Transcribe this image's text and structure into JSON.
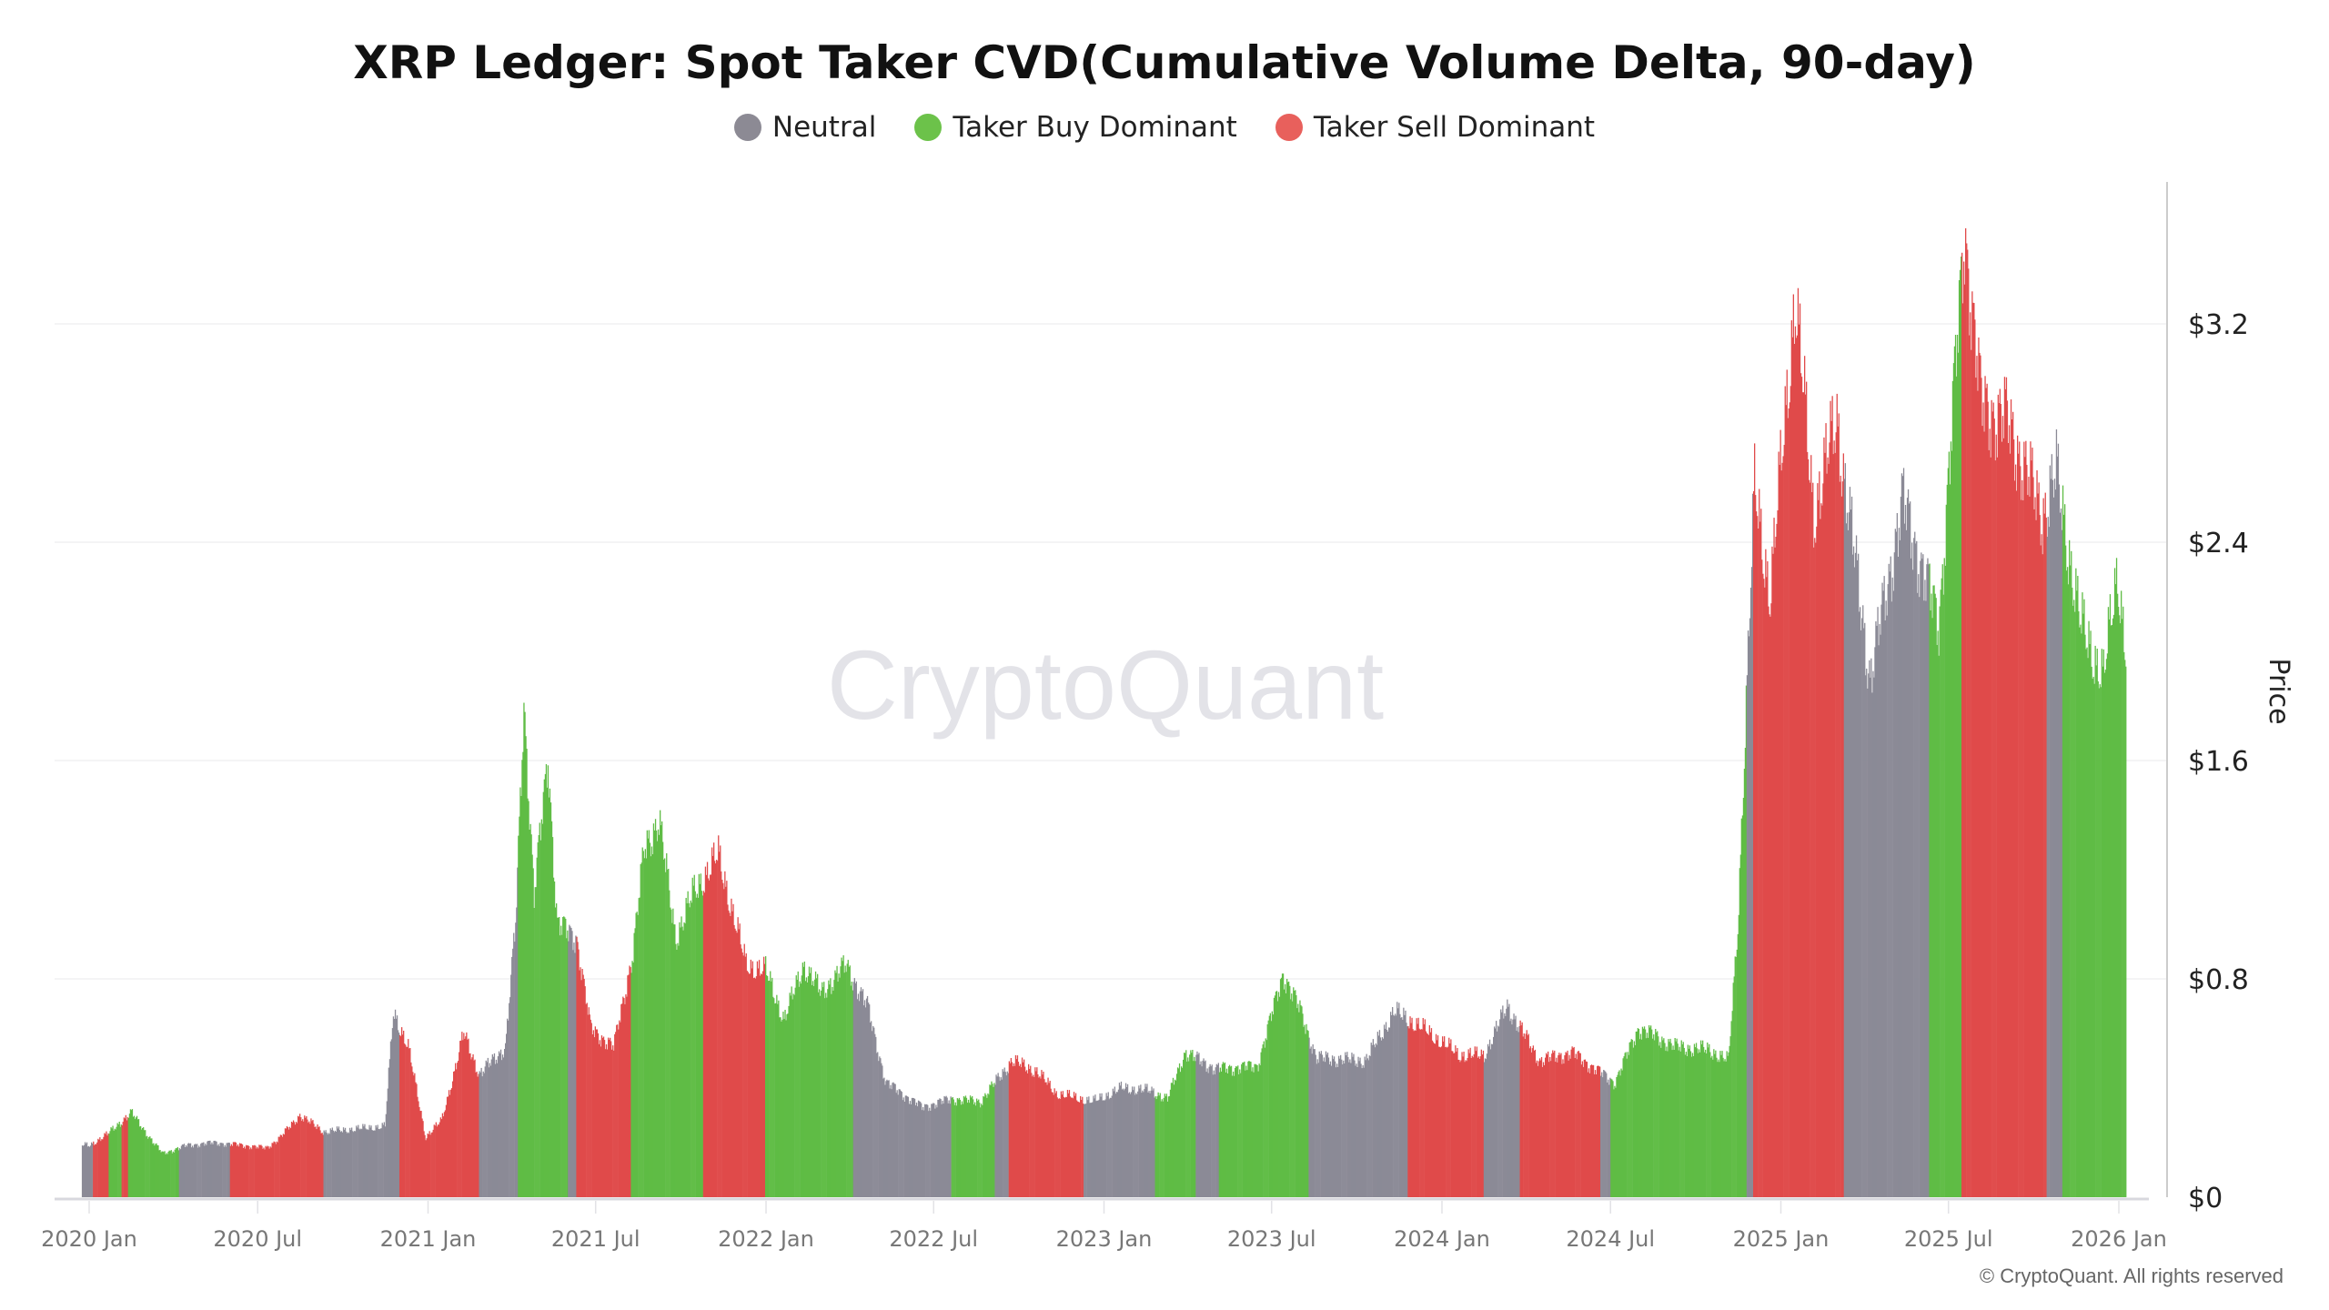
{
  "colors": {
    "neutral": "#8b8a96",
    "buy": "#5fbc45",
    "sell": "#e04a4a"
  },
  "chart_data": {
    "type": "bar",
    "title": "XRP Ledger: Spot Taker CVD(Cumulative Volume Delta, 90-day)",
    "legend": [
      {
        "key": "neutral",
        "label": "Neutral",
        "color": "#8c8a94"
      },
      {
        "key": "buy",
        "label": "Taker Buy Dominant",
        "color": "#6cc24a"
      },
      {
        "key": "sell",
        "label": "Taker Sell Dominant",
        "color": "#e8605c"
      }
    ],
    "legend_position": "top",
    "ylabel": "Price",
    "ylim": [
      0,
      3.65
    ],
    "y_ticks": [
      {
        "v": 0,
        "label": "$0"
      },
      {
        "v": 0.8,
        "label": "$0.8"
      },
      {
        "v": 1.6,
        "label": "$1.6"
      },
      {
        "v": 2.4,
        "label": "$2.4"
      },
      {
        "v": 3.2,
        "label": "$3.2"
      }
    ],
    "y_axis_side": "right",
    "x_ticks": [
      {
        "date": "2020-01-01",
        "label": "2020 Jan"
      },
      {
        "date": "2020-07-01",
        "label": "2020 Jul"
      },
      {
        "date": "2021-01-01",
        "label": "2021 Jan"
      },
      {
        "date": "2021-07-01",
        "label": "2021 Jul"
      },
      {
        "date": "2022-01-01",
        "label": "2022 Jan"
      },
      {
        "date": "2022-07-01",
        "label": "2022 Jul"
      },
      {
        "date": "2023-01-01",
        "label": "2023 Jan"
      },
      {
        "date": "2023-07-01",
        "label": "2023 Jul"
      },
      {
        "date": "2024-01-01",
        "label": "2024 Jan"
      },
      {
        "date": "2024-07-01",
        "label": "2024 Jul"
      },
      {
        "date": "2025-01-01",
        "label": "2025 Jan"
      },
      {
        "date": "2025-07-01",
        "label": "2025 Jul"
      },
      {
        "date": "2026-01-01",
        "label": "2026 Jan"
      }
    ],
    "grid": true,
    "price": [
      [
        "2020-01-01",
        0.19
      ],
      [
        "2020-01-20",
        0.23
      ],
      [
        "2020-02-15",
        0.31
      ],
      [
        "2020-03-10",
        0.2
      ],
      [
        "2020-03-20",
        0.16
      ],
      [
        "2020-04-15",
        0.19
      ],
      [
        "2020-05-15",
        0.2
      ],
      [
        "2020-06-15",
        0.19
      ],
      [
        "2020-07-10",
        0.18
      ],
      [
        "2020-07-25",
        0.22
      ],
      [
        "2020-08-15",
        0.3
      ],
      [
        "2020-09-10",
        0.24
      ],
      [
        "2020-10-15",
        0.25
      ],
      [
        "2020-11-15",
        0.26
      ],
      [
        "2020-11-24",
        0.68
      ],
      [
        "2020-12-10",
        0.55
      ],
      [
        "2020-12-29",
        0.22
      ],
      [
        "2021-01-15",
        0.28
      ],
      [
        "2021-02-01",
        0.5
      ],
      [
        "2021-02-08",
        0.6
      ],
      [
        "2021-02-25",
        0.45
      ],
      [
        "2021-03-25",
        0.55
      ],
      [
        "2021-04-05",
        1.0
      ],
      [
        "2021-04-14",
        1.82
      ],
      [
        "2021-04-25",
        1.1
      ],
      [
        "2021-05-10",
        1.62
      ],
      [
        "2021-05-20",
        1.0
      ],
      [
        "2021-06-10",
        0.95
      ],
      [
        "2021-06-25",
        0.62
      ],
      [
        "2021-07-20",
        0.55
      ],
      [
        "2021-08-10",
        0.9
      ],
      [
        "2021-08-22",
        1.28
      ],
      [
        "2021-09-07",
        1.38
      ],
      [
        "2021-09-25",
        0.95
      ],
      [
        "2021-10-15",
        1.12
      ],
      [
        "2021-11-10",
        1.25
      ],
      [
        "2021-12-10",
        0.85
      ],
      [
        "2021-12-31",
        0.83
      ],
      [
        "2022-01-20",
        0.65
      ],
      [
        "2022-02-10",
        0.85
      ],
      [
        "2022-03-01",
        0.75
      ],
      [
        "2022-03-28",
        0.85
      ],
      [
        "2022-04-20",
        0.7
      ],
      [
        "2022-05-10",
        0.42
      ],
      [
        "2022-06-18",
        0.33
      ],
      [
        "2022-07-20",
        0.36
      ],
      [
        "2022-08-20",
        0.35
      ],
      [
        "2022-09-23",
        0.5
      ],
      [
        "2022-10-20",
        0.46
      ],
      [
        "2022-11-10",
        0.38
      ],
      [
        "2022-12-20",
        0.35
      ],
      [
        "2023-01-20",
        0.4
      ],
      [
        "2023-02-20",
        0.39
      ],
      [
        "2023-03-10",
        0.36
      ],
      [
        "2023-03-29",
        0.53
      ],
      [
        "2023-05-01",
        0.47
      ],
      [
        "2023-06-15",
        0.48
      ],
      [
        "2023-07-13",
        0.82
      ],
      [
        "2023-08-01",
        0.68
      ],
      [
        "2023-08-18",
        0.51
      ],
      [
        "2023-10-10",
        0.5
      ],
      [
        "2023-11-10",
        0.68
      ],
      [
        "2023-12-10",
        0.62
      ],
      [
        "2024-01-20",
        0.52
      ],
      [
        "2024-02-15",
        0.52
      ],
      [
        "2024-03-11",
        0.7
      ],
      [
        "2024-04-15",
        0.5
      ],
      [
        "2024-05-20",
        0.53
      ],
      [
        "2024-07-05",
        0.42
      ],
      [
        "2024-07-31",
        0.62
      ],
      [
        "2024-09-10",
        0.55
      ],
      [
        "2024-10-15",
        0.54
      ],
      [
        "2024-11-05",
        0.5
      ],
      [
        "2024-11-15",
        1.0
      ],
      [
        "2024-12-03",
        2.6
      ],
      [
        "2024-12-20",
        2.2
      ],
      [
        "2025-01-16",
        3.3
      ],
      [
        "2025-02-05",
        2.5
      ],
      [
        "2025-03-02",
        2.85
      ],
      [
        "2025-04-07",
        1.9
      ],
      [
        "2025-05-12",
        2.55
      ],
      [
        "2025-06-20",
        2.1
      ],
      [
        "2025-07-18",
        3.55
      ],
      [
        "2025-08-05",
        2.9
      ],
      [
        "2025-09-01",
        2.85
      ],
      [
        "2025-10-10",
        2.5
      ],
      [
        "2025-10-25",
        2.65
      ],
      [
        "2025-11-20",
        2.1
      ],
      [
        "2025-12-15",
        1.9
      ],
      [
        "2025-12-30",
        2.3
      ],
      [
        "2026-01-08",
        2.0
      ]
    ],
    "regimes": [
      [
        "2020-01-01",
        "2020-01-05",
        "neutral"
      ],
      [
        "2020-01-05",
        "2020-01-22",
        "sell"
      ],
      [
        "2020-01-22",
        "2020-02-05",
        "buy"
      ],
      [
        "2020-02-05",
        "2020-02-12",
        "sell"
      ],
      [
        "2020-02-12",
        "2020-04-07",
        "buy"
      ],
      [
        "2020-04-07",
        "2020-06-01",
        "neutral"
      ],
      [
        "2020-06-01",
        "2020-09-10",
        "sell"
      ],
      [
        "2020-09-10",
        "2020-12-01",
        "neutral"
      ],
      [
        "2020-12-01",
        "2021-02-25",
        "sell"
      ],
      [
        "2021-02-25",
        "2021-04-08",
        "neutral"
      ],
      [
        "2021-04-08",
        "2021-06-01",
        "buy"
      ],
      [
        "2021-06-01",
        "2021-06-10",
        "neutral"
      ],
      [
        "2021-06-10",
        "2021-08-08",
        "sell"
      ],
      [
        "2021-08-08",
        "2021-10-25",
        "buy"
      ],
      [
        "2021-10-25",
        "2021-12-31",
        "sell"
      ],
      [
        "2021-12-31",
        "2022-04-05",
        "buy"
      ],
      [
        "2022-04-05",
        "2022-07-20",
        "neutral"
      ],
      [
        "2022-07-20",
        "2022-09-05",
        "buy"
      ],
      [
        "2022-09-05",
        "2022-09-20",
        "neutral"
      ],
      [
        "2022-09-20",
        "2022-12-10",
        "sell"
      ],
      [
        "2022-12-10",
        "2023-02-25",
        "neutral"
      ],
      [
        "2023-02-25",
        "2023-04-10",
        "buy"
      ],
      [
        "2023-04-10",
        "2023-05-05",
        "neutral"
      ],
      [
        "2023-05-05",
        "2023-08-10",
        "buy"
      ],
      [
        "2023-08-10",
        "2023-11-25",
        "neutral"
      ],
      [
        "2023-11-25",
        "2024-02-15",
        "sell"
      ],
      [
        "2024-02-15",
        "2024-03-25",
        "neutral"
      ],
      [
        "2024-03-25",
        "2024-06-20",
        "sell"
      ],
      [
        "2024-06-20",
        "2024-07-01",
        "neutral"
      ],
      [
        "2024-07-01",
        "2024-11-25",
        "buy"
      ],
      [
        "2024-11-25",
        "2024-12-02",
        "neutral"
      ],
      [
        "2024-12-02",
        "2025-03-10",
        "sell"
      ],
      [
        "2025-03-10",
        "2025-06-10",
        "neutral"
      ],
      [
        "2025-06-10",
        "2025-07-15",
        "buy"
      ],
      [
        "2025-07-15",
        "2025-10-15",
        "sell"
      ],
      [
        "2025-10-15",
        "2025-11-01",
        "neutral"
      ],
      [
        "2025-11-01",
        "2026-01-09",
        "buy"
      ]
    ]
  },
  "watermark": "CryptoQuant",
  "copyright": "© CryptoQuant. All rights reserved"
}
